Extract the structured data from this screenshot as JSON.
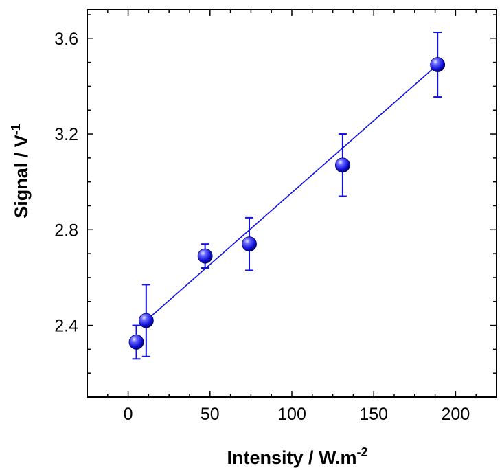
{
  "chart_data": {
    "type": "scatter",
    "xlabel": "Intensity / W.m",
    "xlabel_sup": "-2",
    "ylabel": "Signal / V",
    "ylabel_sup": "-1",
    "xlim": [
      -25,
      225
    ],
    "ylim": [
      2.1,
      3.72
    ],
    "xticks": [
      0,
      50,
      100,
      150,
      200
    ],
    "xtick_labels": [
      "0",
      "50",
      "100",
      "150",
      "200"
    ],
    "yticks": [
      2.4,
      2.8,
      3.2,
      3.6
    ],
    "ytick_labels": [
      "2.4",
      "2.8",
      "3.2",
      "3.6"
    ],
    "grid": false,
    "series": [
      {
        "points": [
          {
            "x": 5,
            "y": 2.33,
            "err": 0.07
          },
          {
            "x": 11,
            "y": 2.42,
            "err": 0.15
          },
          {
            "x": 47,
            "y": 2.69,
            "err": 0.05
          },
          {
            "x": 74,
            "y": 2.74,
            "err": 0.11
          },
          {
            "x": 131,
            "y": 3.07,
            "err": 0.13
          },
          {
            "x": 189,
            "y": 3.49,
            "err": 0.135
          }
        ],
        "color": "#1010e0"
      }
    ],
    "fit_line": {
      "x": [
        11,
        189
      ],
      "y": [
        2.42,
        3.49
      ]
    }
  }
}
